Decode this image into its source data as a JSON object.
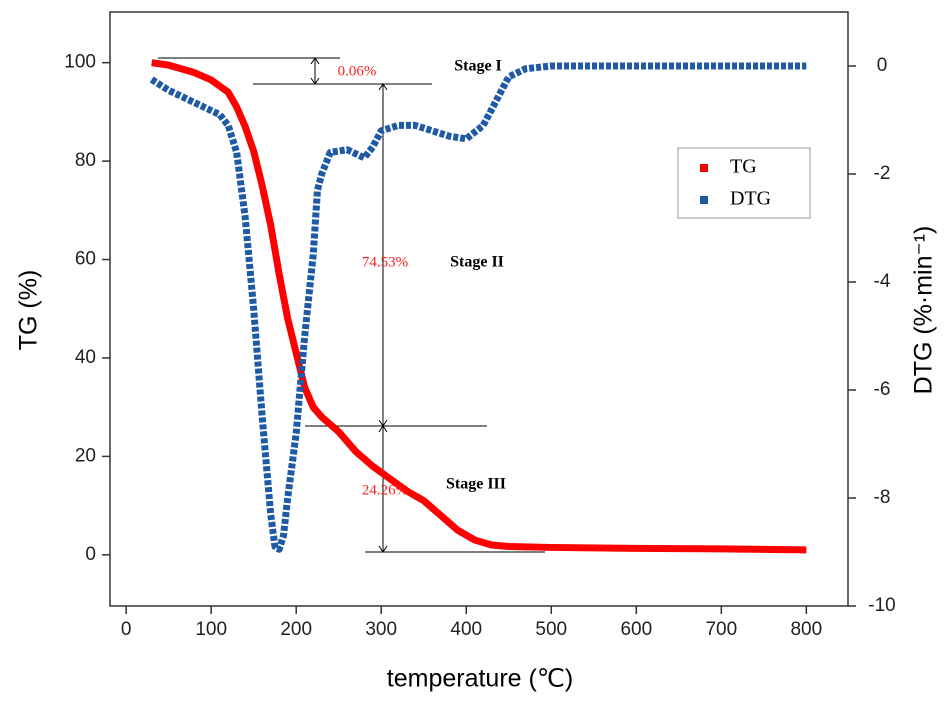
{
  "chart_data": {
    "type": "line",
    "x_label": "temperature (℃)",
    "y_label": "TG (%)",
    "y2_label": "DTG (%·min⁻¹)",
    "xlim": [
      -19,
      849
    ],
    "xticks": [
      0,
      100,
      200,
      300,
      400,
      500,
      600,
      700,
      800
    ],
    "ylim": [
      -10.4,
      110.3
    ],
    "yticks": [
      0,
      20,
      40,
      60,
      80,
      100
    ],
    "y2lim": [
      -10,
      1
    ],
    "y2ticks": [
      -10,
      -8,
      -6,
      -4,
      -2,
      0
    ],
    "legend": "upper right",
    "series": [
      {
        "name": "TG",
        "color": "#ff0000",
        "x": [
          30,
          50,
          80,
          100,
          120,
          130,
          140,
          150,
          160,
          170,
          180,
          190,
          200,
          210,
          220,
          230,
          250,
          270,
          290,
          310,
          330,
          350,
          370,
          390,
          410,
          430,
          450,
          500,
          600,
          700,
          800
        ],
        "values": [
          100,
          99.5,
          98,
          96.5,
          94,
          91,
          87,
          82,
          75,
          67,
          57,
          48,
          41,
          34,
          30,
          28,
          25,
          21,
          18,
          15.5,
          13,
          11,
          8,
          5,
          3,
          2,
          1.7,
          1.5,
          1.3,
          1.2,
          1.0
        ]
      },
      {
        "name": "DTG",
        "color": "#1f5aa6",
        "axis": "y2",
        "x": [
          30,
          50,
          70,
          90,
          110,
          120,
          130,
          140,
          150,
          160,
          170,
          175,
          180,
          185,
          190,
          200,
          210,
          220,
          225,
          230,
          240,
          260,
          280,
          290,
          300,
          320,
          340,
          360,
          380,
          400,
          420,
          430,
          440,
          450,
          470,
          500,
          600,
          700,
          800
        ],
        "values": [
          -0.25,
          -0.45,
          -0.6,
          -0.75,
          -0.9,
          -1.1,
          -1.6,
          -2.8,
          -4.5,
          -6.5,
          -8.3,
          -8.9,
          -8.95,
          -8.7,
          -8,
          -6.8,
          -5,
          -3.5,
          -2.3,
          -2,
          -1.6,
          -1.55,
          -1.7,
          -1.5,
          -1.2,
          -1.1,
          -1.1,
          -1.2,
          -1.3,
          -1.35,
          -1.1,
          -0.8,
          -0.5,
          -0.2,
          -0.05,
          0,
          0,
          0,
          0
        ]
      }
    ],
    "annotations": [
      "0.06%",
      "Stage I",
      "74.53%",
      "Stage II",
      "24.26%",
      "Stage III"
    ]
  }
}
